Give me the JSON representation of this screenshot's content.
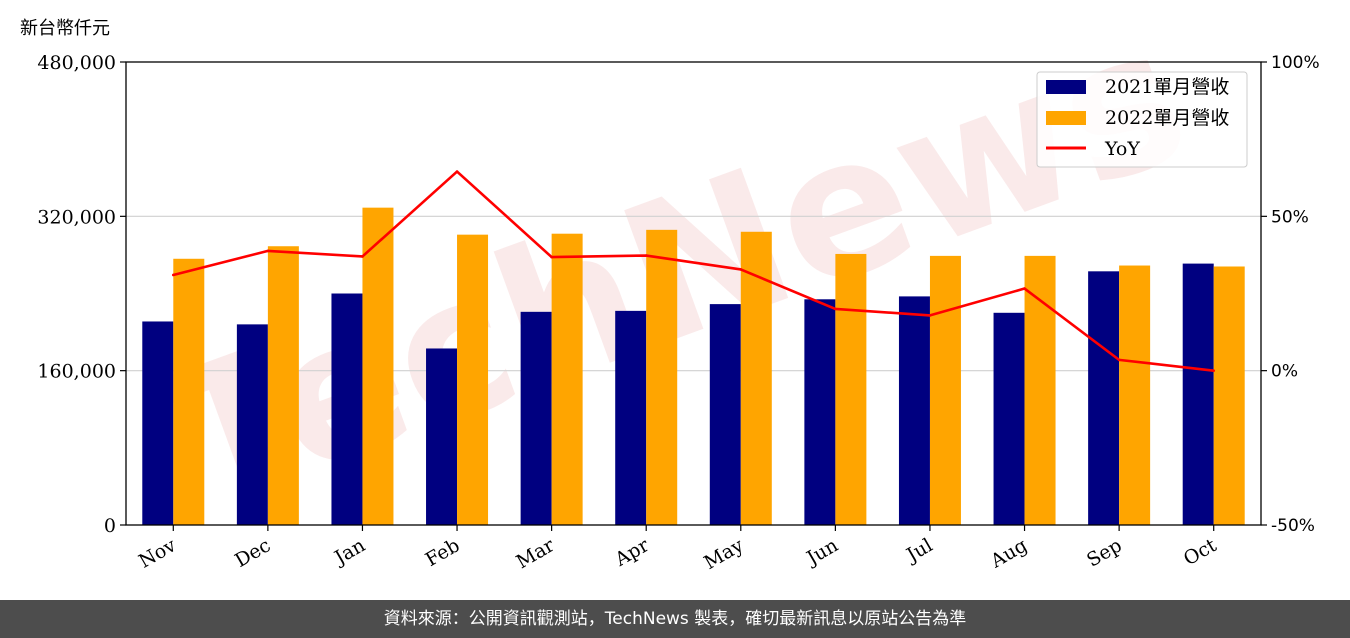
{
  "chart_data": {
    "type": "bar",
    "y_unit_label": "新台幣仟元",
    "categories": [
      "Nov",
      "Dec",
      "Jan",
      "Feb",
      "Mar",
      "Apr",
      "May",
      "Jun",
      "Jul",
      "Aug",
      "Sep",
      "Oct"
    ],
    "series": [
      {
        "name": "2021單月營收",
        "type": "bar",
        "color": "#000080",
        "values": [
          211000,
          208000,
          240000,
          183000,
          221000,
          222000,
          229000,
          234000,
          237000,
          220000,
          263000,
          271000
        ]
      },
      {
        "name": "2022單月營收",
        "type": "bar",
        "color": "#FFA500",
        "values": [
          276000,
          289000,
          329000,
          301000,
          302000,
          306000,
          304000,
          281000,
          279000,
          279000,
          269000,
          268000
        ]
      },
      {
        "name": "YoY",
        "type": "line",
        "axis": "right",
        "color": "#FF0000",
        "values": [
          31,
          38.8,
          37,
          64.5,
          36.8,
          37.3,
          32.8,
          20,
          17.9,
          26.6,
          3.5,
          0
        ]
      }
    ],
    "left_axis": {
      "ylim": [
        0,
        480000
      ],
      "ticks": [
        "0",
        "160,000",
        "320,000",
        "480,000"
      ],
      "tick_values": [
        0,
        160000,
        320000,
        480000
      ]
    },
    "right_axis": {
      "ylim": [
        -50,
        100
      ],
      "ticks": [
        "-50%",
        "0%",
        "50%",
        "100%"
      ],
      "tick_values": [
        -50,
        0,
        50,
        100
      ]
    },
    "grid": "horizontal",
    "legend_position": "top-right"
  },
  "watermark": "TechNews",
  "footer": {
    "source_text": "資料來源：公開資訊觀測站，TechNews 製表，確切最新訊息以原站公告為準"
  }
}
